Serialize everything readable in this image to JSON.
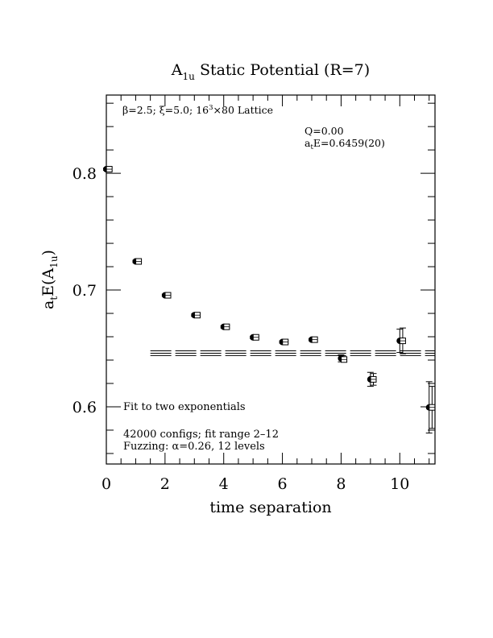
{
  "chart_data": {
    "type": "scatter",
    "title": {
      "main": "A",
      "sub": "1u",
      "rest": " Static Potential (R=7)"
    },
    "xlabel": "time separation",
    "ylabel": {
      "a": "a",
      "t": "t",
      "e": "E(A",
      "sub": "1u",
      "close": ")"
    },
    "xlim": [
      0,
      11.2
    ],
    "ylim": [
      0.551,
      0.867
    ],
    "xticks": [
      0,
      2,
      4,
      6,
      8,
      10
    ],
    "yticks": [
      0.6,
      0.7,
      0.8
    ],
    "xtick_labels": [
      "0",
      "2",
      "4",
      "6",
      "8",
      "10"
    ],
    "ytick_labels": [
      "0.6",
      "0.7",
      "0.8"
    ],
    "annotations": {
      "lattice": {
        "beta": "β=2.5; ",
        "xi": "ξ=5.0; 16",
        "sup": "3",
        "rest": "×80 Lattice"
      },
      "q": "Q=0.00",
      "energy": {
        "a": "a",
        "t": "t",
        "rest": "E=0.6459(20)"
      },
      "fit_label": "Fit to two exponentials",
      "configs": "42000 configs; fit range 2–12",
      "fuzzing": "Fuzzing: α=0.26, 12 levels"
    },
    "series": [
      {
        "marker": "filled-circle",
        "x": [
          0,
          1,
          2,
          3,
          4,
          5,
          6,
          7,
          8,
          9,
          10,
          11
        ],
        "y": [
          0.8035,
          0.7245,
          0.6955,
          0.6785,
          0.6685,
          0.6595,
          0.6555,
          0.6575,
          0.6415,
          0.6235,
          0.6565,
          0.5995
        ],
        "err": [
          0.001,
          0.001,
          0.001,
          0.001,
          0.001,
          0.001,
          0.001,
          0.001,
          0.003,
          0.006,
          0.01,
          0.022
        ]
      },
      {
        "marker": "open-square",
        "x": [
          0.1,
          1.1,
          2.1,
          3.1,
          4.1,
          5.1,
          6.1,
          7.1,
          8.1,
          9.1,
          10.1,
          11.1
        ],
        "y": [
          0.8035,
          0.7245,
          0.6955,
          0.6785,
          0.6685,
          0.6595,
          0.6555,
          0.6575,
          0.6405,
          0.6235,
          0.6565,
          0.5995
        ],
        "err": [
          0.001,
          0.001,
          0.001,
          0.001,
          0.001,
          0.001,
          0.001,
          0.001,
          0.002,
          0.005,
          0.011,
          0.018
        ]
      }
    ],
    "fit": {
      "x_range": [
        1.5,
        11.2
      ],
      "value": 0.6459,
      "error": 0.002
    }
  }
}
